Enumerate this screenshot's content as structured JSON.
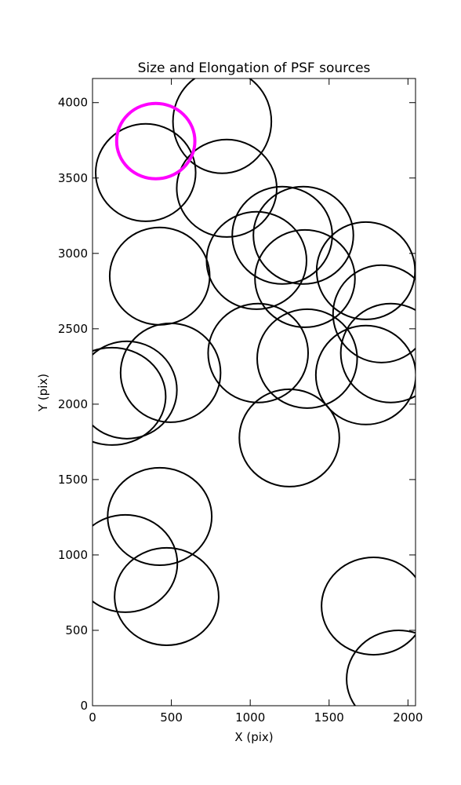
{
  "chart_data": {
    "type": "ellipse",
    "title": "Size and Elongation of PSF sources",
    "xlabel": "X (pix)",
    "ylabel": "Y (pix)",
    "xlim": [
      0,
      2048
    ],
    "ylim": [
      0,
      4160
    ],
    "xticks": [
      0,
      500,
      1000,
      1500,
      2000
    ],
    "yticks": [
      0,
      500,
      1000,
      1500,
      2000,
      2500,
      3000,
      3500,
      4000
    ],
    "series": [
      {
        "color": "#000000",
        "linewidth": 2,
        "x": [
          337,
          822,
          851,
          426,
          1040,
          1203,
          1337,
          1347,
          1733,
          1832,
          1050,
          1361,
          1733,
          1891,
          495,
          218,
          124,
          1248,
          426,
          208,
          470,
          1782,
          1941
        ],
        "y": [
          3536,
          3875,
          3432,
          2849,
          2953,
          3120,
          3120,
          2833,
          2885,
          2599,
          2339,
          2302,
          2193,
          2339,
          2208,
          2094,
          2052,
          1776,
          1255,
          943,
          724,
          661,
          177
        ],
        "width": [
          634,
          624,
          634,
          634,
          634,
          634,
          634,
          634,
          624,
          614,
          634,
          634,
          634,
          634,
          634,
          634,
          680,
          634,
          660,
          660,
          660,
          660,
          660
        ],
        "height": [
          646,
          688,
          646,
          646,
          646,
          646,
          646,
          646,
          646,
          646,
          656,
          656,
          656,
          656,
          656,
          646,
          646,
          646,
          646,
          646,
          646,
          646,
          646
        ]
      },
      {
        "color": "#ff00ff",
        "linewidth": 4,
        "x": [
          401
        ],
        "y": [
          3745
        ],
        "width": [
          496
        ],
        "height": [
          500
        ]
      }
    ]
  }
}
